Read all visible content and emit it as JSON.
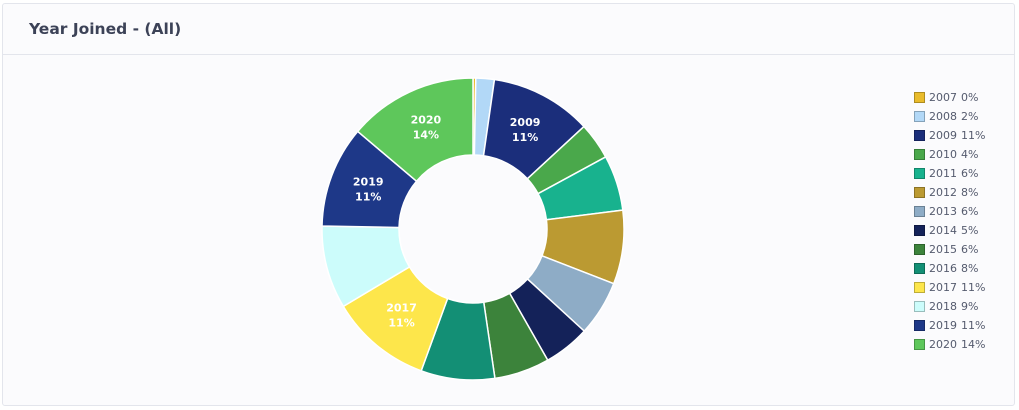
{
  "header": {
    "title": "Year Joined - (All)"
  },
  "chart_data": {
    "type": "pie",
    "donut": true,
    "title": "Year Joined - (All)",
    "legend_position": "right",
    "slices": [
      {
        "label": "2007",
        "value": 0.3,
        "pct": "0%",
        "color": "#e9bb2b",
        "show_label": false
      },
      {
        "label": "2008",
        "value": 2,
        "pct": "2%",
        "color": "#b2d8f7",
        "show_label": false
      },
      {
        "label": "2009",
        "value": 11,
        "pct": "11%",
        "color": "#1b2e7b",
        "show_label": true
      },
      {
        "label": "2010",
        "value": 4,
        "pct": "4%",
        "color": "#4aa84b",
        "show_label": false
      },
      {
        "label": "2011",
        "value": 6,
        "pct": "6%",
        "color": "#18b28e",
        "show_label": false
      },
      {
        "label": "2012",
        "value": 8,
        "pct": "8%",
        "color": "#bb9a32",
        "show_label": false
      },
      {
        "label": "2013",
        "value": 6,
        "pct": "6%",
        "color": "#8eacc6",
        "show_label": false
      },
      {
        "label": "2014",
        "value": 5,
        "pct": "5%",
        "color": "#142259",
        "show_label": false
      },
      {
        "label": "2015",
        "value": 6,
        "pct": "6%",
        "color": "#3c833b",
        "show_label": false
      },
      {
        "label": "2016",
        "value": 8,
        "pct": "8%",
        "color": "#138f75",
        "show_label": false
      },
      {
        "label": "2017",
        "value": 11,
        "pct": "11%",
        "color": "#fde64b",
        "show_label": true
      },
      {
        "label": "2018",
        "value": 9,
        "pct": "9%",
        "color": "#ccfcfb",
        "show_label": false
      },
      {
        "label": "2019",
        "value": 11,
        "pct": "11%",
        "color": "#1e3888",
        "show_label": true
      },
      {
        "label": "2020",
        "value": 14,
        "pct": "14%",
        "color": "#5ec75b",
        "show_label": true
      }
    ]
  }
}
